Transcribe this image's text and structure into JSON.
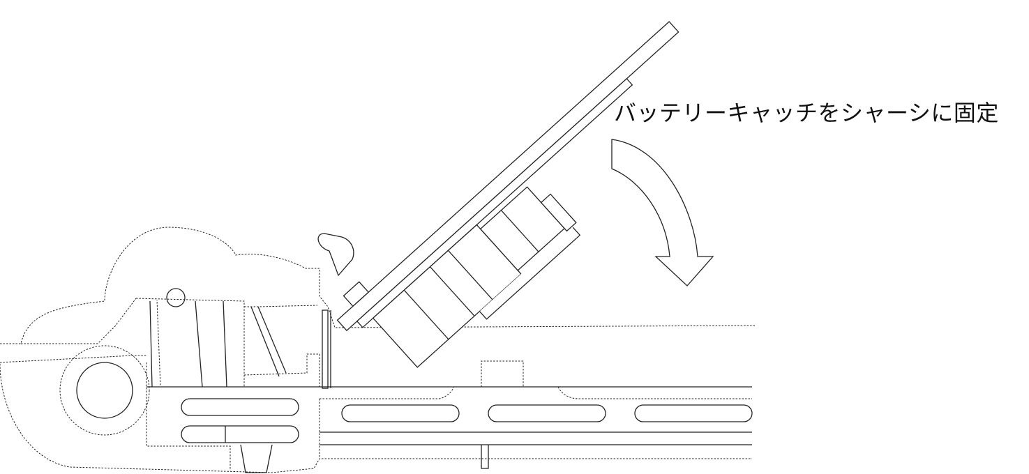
{
  "caption": "バッテリーキャッチをシャーシに固定"
}
